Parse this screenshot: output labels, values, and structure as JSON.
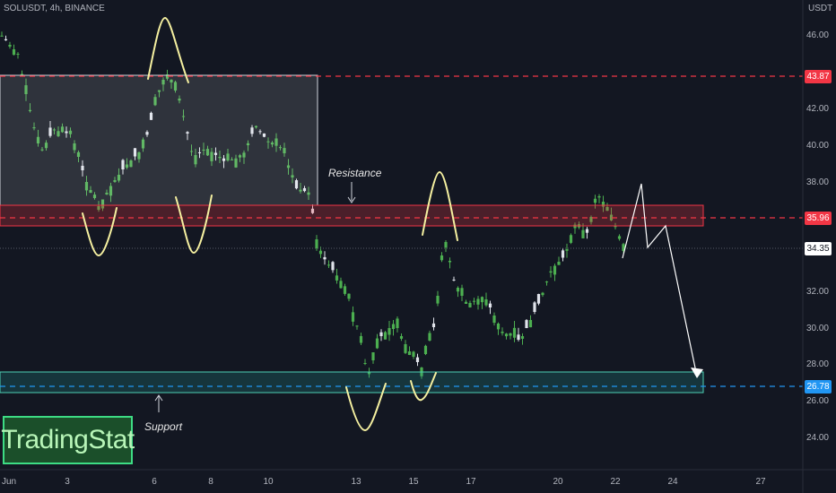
{
  "header": {
    "symbol_label": "SOLUSDT, 4h, BINANCE"
  },
  "price_axis": {
    "currency": "USDT",
    "ticks": [
      "46.00",
      "42.00",
      "40.00",
      "38.00",
      "32.00",
      "30.00",
      "28.00",
      "26.00",
      "24.00"
    ],
    "tags": [
      {
        "value": "43.87",
        "color": "#f23645"
      },
      {
        "value": "35.96",
        "color": "#f23645"
      },
      {
        "value": "34.35",
        "color": "#ffffff"
      },
      {
        "value": "26.78",
        "color": "#2196f3"
      }
    ]
  },
  "time_axis": {
    "labels": [
      "Jun",
      "3",
      "6",
      "8",
      "10",
      "13",
      "15",
      "17",
      "20",
      "22",
      "24",
      "27"
    ]
  },
  "annotations": {
    "resistance": "Resistance",
    "support": "Support"
  },
  "logo": {
    "text": "TradingStat"
  },
  "colors": {
    "up": "#26a69a",
    "down": "#ef5350",
    "up_alt": "#4caf50"
  }
}
